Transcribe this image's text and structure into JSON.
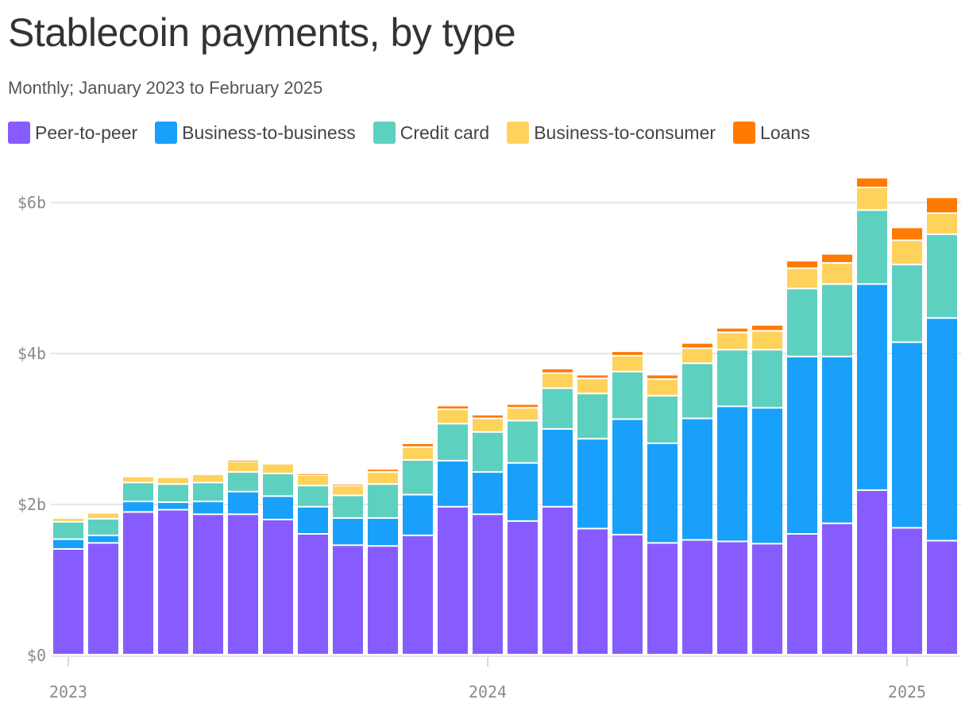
{
  "chart_data": {
    "type": "bar",
    "stacked": true,
    "title": "Stablecoin payments, by type",
    "subtitle": "Monthly; January 2023 to February 2025",
    "categories": [
      "Jan 2023",
      "Feb 2023",
      "Mar 2023",
      "Apr 2023",
      "May 2023",
      "Jun 2023",
      "Jul 2023",
      "Aug 2023",
      "Sep 2023",
      "Oct 2023",
      "Nov 2023",
      "Dec 2023",
      "Jan 2024",
      "Feb 2024",
      "Mar 2024",
      "Apr 2024",
      "May 2024",
      "Jun 2024",
      "Jul 2024",
      "Aug 2024",
      "Sep 2024",
      "Oct 2024",
      "Nov 2024",
      "Dec 2024",
      "Jan 2025",
      "Feb 2025"
    ],
    "series": [
      {
        "name": "Peer-to-peer",
        "color": "#875CFF",
        "values": [
          1.4,
          1.48,
          1.89,
          1.92,
          1.86,
          1.86,
          1.79,
          1.6,
          1.45,
          1.44,
          1.58,
          1.96,
          1.86,
          1.77,
          1.96,
          1.67,
          1.59,
          1.48,
          1.52,
          1.5,
          1.47,
          1.6,
          1.74,
          2.18,
          1.68,
          1.51
        ]
      },
      {
        "name": "Business-to-business",
        "color": "#18A0FB",
        "values": [
          0.13,
          0.1,
          0.14,
          0.1,
          0.17,
          0.3,
          0.31,
          0.36,
          0.36,
          0.37,
          0.54,
          0.61,
          0.56,
          0.77,
          1.03,
          1.19,
          1.53,
          1.32,
          1.61,
          1.79,
          1.8,
          2.35,
          2.21,
          2.73,
          2.46,
          2.95
        ]
      },
      {
        "name": "Credit card",
        "color": "#5ED0C0",
        "values": [
          0.23,
          0.22,
          0.25,
          0.24,
          0.25,
          0.26,
          0.3,
          0.28,
          0.3,
          0.45,
          0.46,
          0.49,
          0.53,
          0.56,
          0.54,
          0.6,
          0.63,
          0.63,
          0.73,
          0.75,
          0.77,
          0.9,
          0.96,
          0.98,
          1.03,
          1.11
        ]
      },
      {
        "name": "Business-to-consumer",
        "color": "#FFD25C",
        "values": [
          0.05,
          0.08,
          0.08,
          0.09,
          0.11,
          0.14,
          0.13,
          0.14,
          0.13,
          0.16,
          0.17,
          0.19,
          0.18,
          0.17,
          0.2,
          0.2,
          0.21,
          0.22,
          0.2,
          0.23,
          0.25,
          0.27,
          0.28,
          0.3,
          0.32,
          0.28
        ]
      },
      {
        "name": "Loans",
        "color": "#FF7A00",
        "values": [
          0.0,
          0.0,
          0.0,
          0.0,
          0.0,
          0.02,
          0.0,
          0.02,
          0.02,
          0.04,
          0.05,
          0.05,
          0.05,
          0.05,
          0.06,
          0.05,
          0.06,
          0.06,
          0.07,
          0.06,
          0.08,
          0.1,
          0.12,
          0.13,
          0.17,
          0.21
        ]
      }
    ],
    "ylim": [
      0,
      6.5
    ],
    "yticks": [
      {
        "value": 0,
        "label": "$0"
      },
      {
        "value": 2,
        "label": "$2b"
      },
      {
        "value": 4,
        "label": "$4b"
      },
      {
        "value": 6,
        "label": "$6b"
      }
    ],
    "xticks": [
      {
        "index": 0,
        "label": "2023"
      },
      {
        "index": 12,
        "label": "2024"
      },
      {
        "index": 24,
        "label": "2025"
      }
    ],
    "xlabel": "",
    "ylabel": "",
    "grid": true,
    "legend_position": "top-left"
  }
}
